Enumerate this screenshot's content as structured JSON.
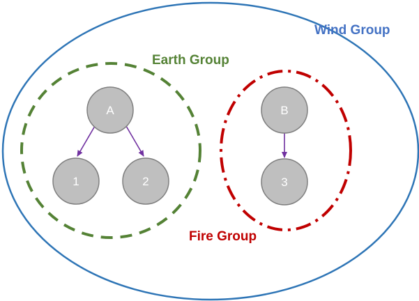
{
  "groups": {
    "wind": {
      "label": "Wind Group",
      "color": "#4a76b8"
    },
    "earth": {
      "label": "Earth Group",
      "color": "#5a8a3a"
    },
    "fire": {
      "label": "Fire Group",
      "color": "#c00000"
    }
  },
  "nodes": {
    "a": {
      "label": "A"
    },
    "b": {
      "label": "B"
    },
    "n1": {
      "label": "1"
    },
    "n2": {
      "label": "2"
    },
    "n3": {
      "label": "3"
    }
  },
  "edges": [
    {
      "from": "A",
      "to": "1"
    },
    {
      "from": "A",
      "to": "2"
    },
    {
      "from": "B",
      "to": "3"
    }
  ],
  "colors": {
    "node_fill": "#bfbfbf",
    "node_stroke": "#7f7f7f",
    "edge": "#7030a0"
  }
}
